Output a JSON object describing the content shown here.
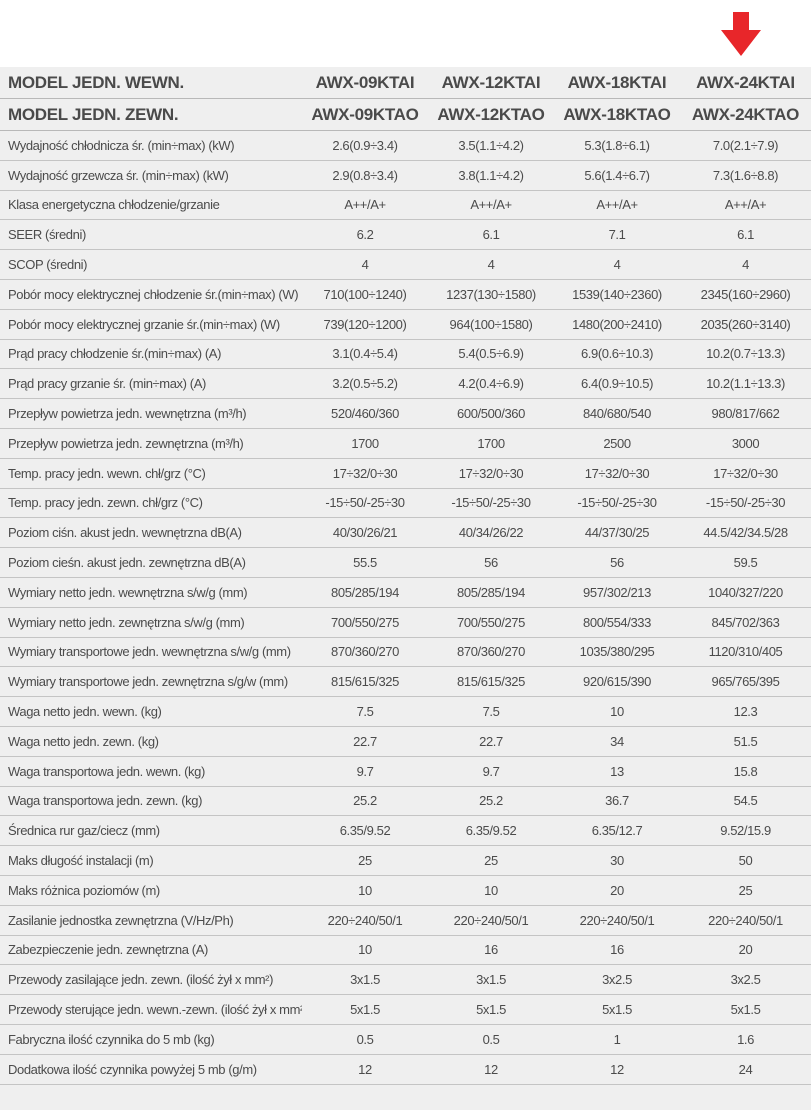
{
  "header": {
    "indoor": {
      "label": "MODEL JEDN. WEWN.",
      "models": [
        "AWX-09KTAI",
        "AWX-12KTAI",
        "AWX-18KTAI",
        "AWX-24KTAI"
      ]
    },
    "outdoor": {
      "label": "MODEL JEDN. ZEWN.",
      "models": [
        "AWX-09KTAO",
        "AWX-12KTAO",
        "AWX-18KTAO",
        "AWX-24KTAO"
      ]
    }
  },
  "arrow_color": "#e8262a",
  "rows": [
    {
      "label": "Wydajność chłodnicza śr. (min÷max) (kW)",
      "values": [
        "2.6(0.9÷3.4)",
        "3.5(1.1÷4.2)",
        "5.3(1.8÷6.1)",
        "7.0(2.1÷7.9)"
      ]
    },
    {
      "label": "Wydajność grzewcza śr. (min÷max) (kW)",
      "values": [
        "2.9(0.8÷3.4)",
        "3.8(1.1÷4.2)",
        "5.6(1.4÷6.7)",
        "7.3(1.6÷8.8)"
      ]
    },
    {
      "label": "Klasa energetyczna chłodzenie/grzanie",
      "values": [
        "A++/A+",
        "A++/A+",
        "A++/A+",
        "A++/A+"
      ]
    },
    {
      "label": "SEER (średni)",
      "values": [
        "6.2",
        "6.1",
        "7.1",
        "6.1"
      ]
    },
    {
      "label": "SCOP (średni)",
      "values": [
        "4",
        "4",
        "4",
        "4"
      ]
    },
    {
      "label": "Pobór mocy elektrycznej chłodzenie śr.(min÷max) (W)",
      "values": [
        "710(100÷1240)",
        "1237(130÷1580)",
        "1539(140÷2360)",
        "2345(160÷2960)"
      ]
    },
    {
      "label": "Pobór mocy elektrycznej grzanie śr.(min÷max)  (W)",
      "values": [
        "739(120÷1200)",
        "964(100÷1580)",
        "1480(200÷2410)",
        "2035(260÷3140)"
      ]
    },
    {
      "label": "Prąd pracy chłodzenie śr.(min÷max) (A)",
      "values": [
        "3.1(0.4÷5.4)",
        "5.4(0.5÷6.9)",
        "6.9(0.6÷10.3)",
        "10.2(0.7÷13.3)"
      ]
    },
    {
      "label": "Prąd pracy grzanie śr. (min÷max) (A)",
      "values": [
        "3.2(0.5÷5.2)",
        "4.2(0.4÷6.9)",
        "6.4(0.9÷10.5)",
        "10.2(1.1÷13.3)"
      ]
    },
    {
      "label": "Przepływ powietrza jedn. wewnętrzna  (m³/h)",
      "values": [
        "520/460/360",
        "600/500/360",
        "840/680/540",
        "980/817/662"
      ]
    },
    {
      "label": "Przepływ powietrza jedn. zewnętrzna  (m³/h)",
      "values": [
        "1700",
        "1700",
        "2500",
        "3000"
      ]
    },
    {
      "label": "Temp. pracy jedn. wewn. chł/grz (°C)",
      "values": [
        "17÷32/0÷30",
        "17÷32/0÷30",
        "17÷32/0÷30",
        "17÷32/0÷30"
      ]
    },
    {
      "label": "Temp. pracy  jedn. zewn. chł/grz (°C)",
      "values": [
        "-15÷50/-25÷30",
        "-15÷50/-25÷30",
        "-15÷50/-25÷30",
        "-15÷50/-25÷30"
      ]
    },
    {
      "label": "Poziom ciśn. akust jedn. wewnętrzna dB(A)",
      "values": [
        "40/30/26/21",
        "40/34/26/22",
        "44/37/30/25",
        "44.5/42/34.5/28"
      ]
    },
    {
      "label": "Poziom cieśn. akust jedn. zewnętrzna dB(A)",
      "values": [
        "55.5",
        "56",
        "56",
        "59.5"
      ]
    },
    {
      "label": "Wymiary netto jedn. wewnętrzna s/w/g (mm)",
      "values": [
        "805/285/194",
        "805/285/194",
        "957/302/213",
        "1040/327/220"
      ]
    },
    {
      "label": "Wymiary netto jedn. zewnętrzna s/w/g (mm)",
      "values": [
        "700/550/275",
        "700/550/275",
        "800/554/333",
        "845/702/363"
      ]
    },
    {
      "label": "Wymiary transportowe jedn. wewnętrzna s/w/g (mm)",
      "values": [
        "870/360/270",
        "870/360/270",
        "1035/380/295",
        "1120/310/405"
      ]
    },
    {
      "label": "Wymiary transportowe jedn. zewnętrzna s/g/w (mm)",
      "values": [
        "815/615/325",
        "815/615/325",
        "920/615/390",
        "965/765/395"
      ]
    },
    {
      "label": "Waga netto jedn. wewn. (kg)",
      "values": [
        "7.5",
        "7.5",
        "10",
        "12.3"
      ]
    },
    {
      "label": "Waga netto jedn. zewn. (kg)",
      "values": [
        "22.7",
        "22.7",
        "34",
        "51.5"
      ]
    },
    {
      "label": "Waga transportowa jedn. wewn. (kg)",
      "values": [
        "9.7",
        "9.7",
        "13",
        "15.8"
      ]
    },
    {
      "label": "Waga transportowa jedn. zewn. (kg)",
      "values": [
        "25.2",
        "25.2",
        "36.7",
        "54.5"
      ]
    },
    {
      "label": "Średnica rur gaz/ciecz (mm)",
      "values": [
        "6.35/9.52",
        "6.35/9.52",
        "6.35/12.7",
        "9.52/15.9"
      ]
    },
    {
      "label": "Maks długość instalacji (m)",
      "values": [
        "25",
        "25",
        "30",
        "50"
      ]
    },
    {
      "label": "Maks różnica poziomów (m)",
      "values": [
        "10",
        "10",
        "20",
        "25"
      ]
    },
    {
      "label": "Zasilanie jednostka zewnętrzna (V/Hz/Ph)",
      "values": [
        "220÷240/50/1",
        "220÷240/50/1",
        "220÷240/50/1",
        "220÷240/50/1"
      ]
    },
    {
      "label": "Zabezpieczenie jedn. zewnętrzna (A)",
      "values": [
        "10",
        "16",
        "16",
        "20"
      ]
    },
    {
      "label": "Przewody zasilające jedn. zewn. (ilość żył x mm²)",
      "values": [
        "3x1.5",
        "3x1.5",
        "3x2.5",
        "3x2.5"
      ]
    },
    {
      "label": "Przewody sterujące jedn. wewn.-zewn. (ilość żył x mm²)",
      "values": [
        "5x1.5",
        "5x1.5",
        "5x1.5",
        "5x1.5"
      ]
    },
    {
      "label": "Fabryczna ilość czynnika do 5 mb (kg)",
      "values": [
        "0.5",
        "0.5",
        "1",
        "1.6"
      ]
    },
    {
      "label": "Dodatkowa ilość czynnika powyżej 5 mb  (g/m)",
      "values": [
        "12",
        "12",
        "12",
        "24"
      ]
    }
  ]
}
